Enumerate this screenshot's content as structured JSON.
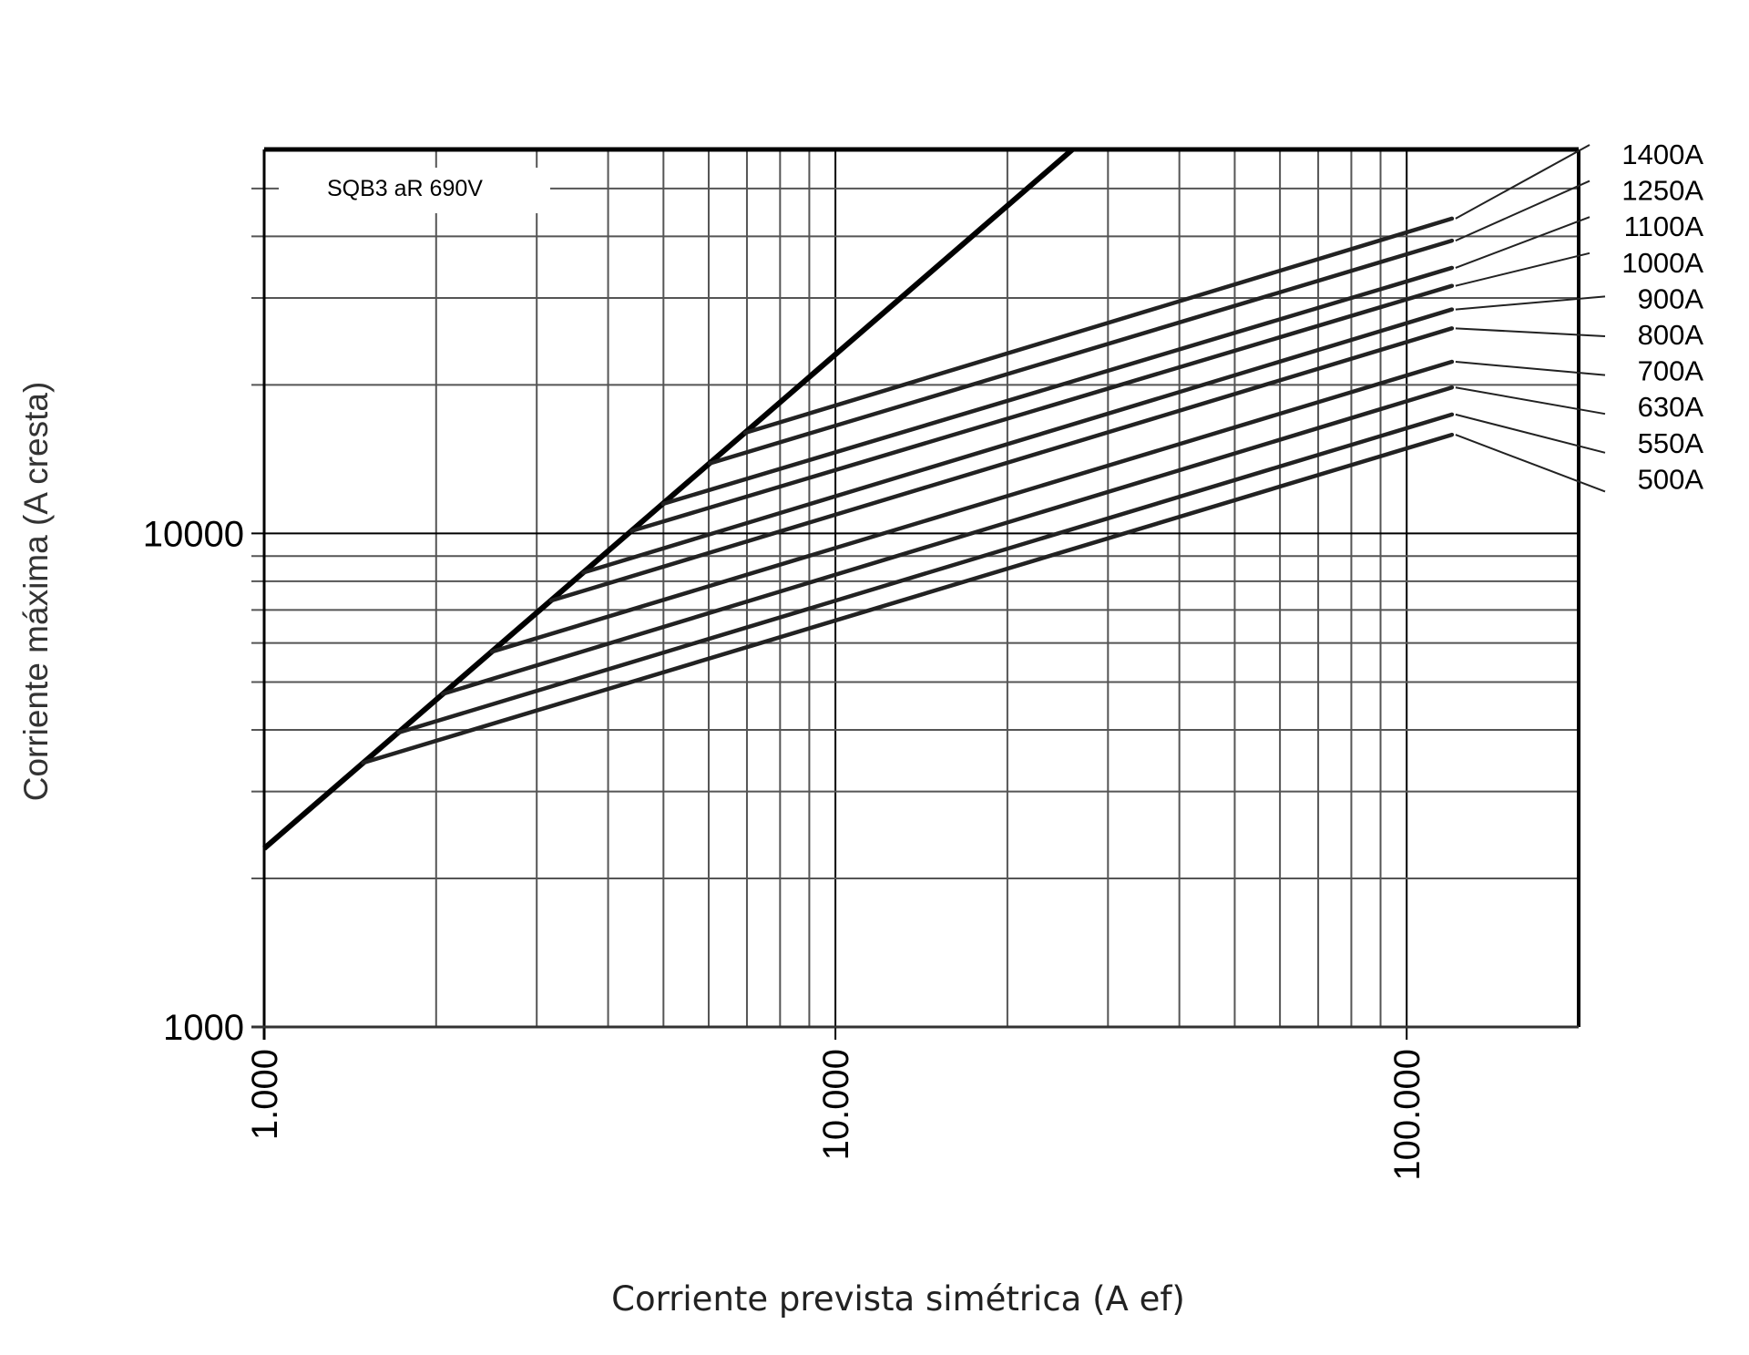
{
  "chart_data": {
    "type": "line",
    "title": "",
    "annotation": "SQB3 aR 690V",
    "xlabel": "Corriente prevista simétrica (A ef)",
    "ylabel": "Corriente máxima (A cresta)",
    "x_scale": "log",
    "y_scale": "log",
    "xlim": [
      1000,
      200000
    ],
    "ylim": [
      1000,
      60000
    ],
    "grid": true,
    "legend": "right, labels with leader lines",
    "x_ticks": [
      {
        "value": 1000,
        "label": "1.000"
      },
      {
        "value": 10000,
        "label": "10.000"
      },
      {
        "value": 100000,
        "label": "100.000"
      }
    ],
    "y_ticks": [
      {
        "value": 1000,
        "label": "1000"
      },
      {
        "value": 10000,
        "label": "10000"
      }
    ],
    "limit_curve": {
      "x": [
        1000,
        26000
      ],
      "y": [
        2300,
        60000
      ]
    },
    "series": [
      {
        "name": "1400A",
        "x": [
          6950,
          120000
        ],
        "y": [
          15990,
          43450
        ]
      },
      {
        "name": "1250A",
        "x": [
          6030,
          120000
        ],
        "y": [
          13870,
          39200
        ]
      },
      {
        "name": "1100A",
        "x": [
          4990,
          120000
        ],
        "y": [
          11480,
          34530
        ]
      },
      {
        "name": "1000A",
        "x": [
          4400,
          120000
        ],
        "y": [
          10120,
          31750
        ]
      },
      {
        "name": "900A",
        "x": [
          3620,
          120000
        ],
        "y": [
          8330,
          28440
        ]
      },
      {
        "name": "800A",
        "x": [
          3180,
          120000
        ],
        "y": [
          7310,
          26040
        ]
      },
      {
        "name": "700A",
        "x": [
          2505,
          120000
        ],
        "y": [
          5760,
          22280
        ]
      },
      {
        "name": "630A",
        "x": [
          2055,
          120000
        ],
        "y": [
          4730,
          19760
        ]
      },
      {
        "name": "550A",
        "x": [
          1720,
          120000
        ],
        "y": [
          3950,
          17420
        ]
      },
      {
        "name": "500A",
        "x": [
          1490,
          120000
        ],
        "y": [
          3430,
          15850
        ]
      }
    ],
    "colors": {
      "lines": "#222222",
      "grid": "#555555",
      "frame": "#000000"
    }
  }
}
